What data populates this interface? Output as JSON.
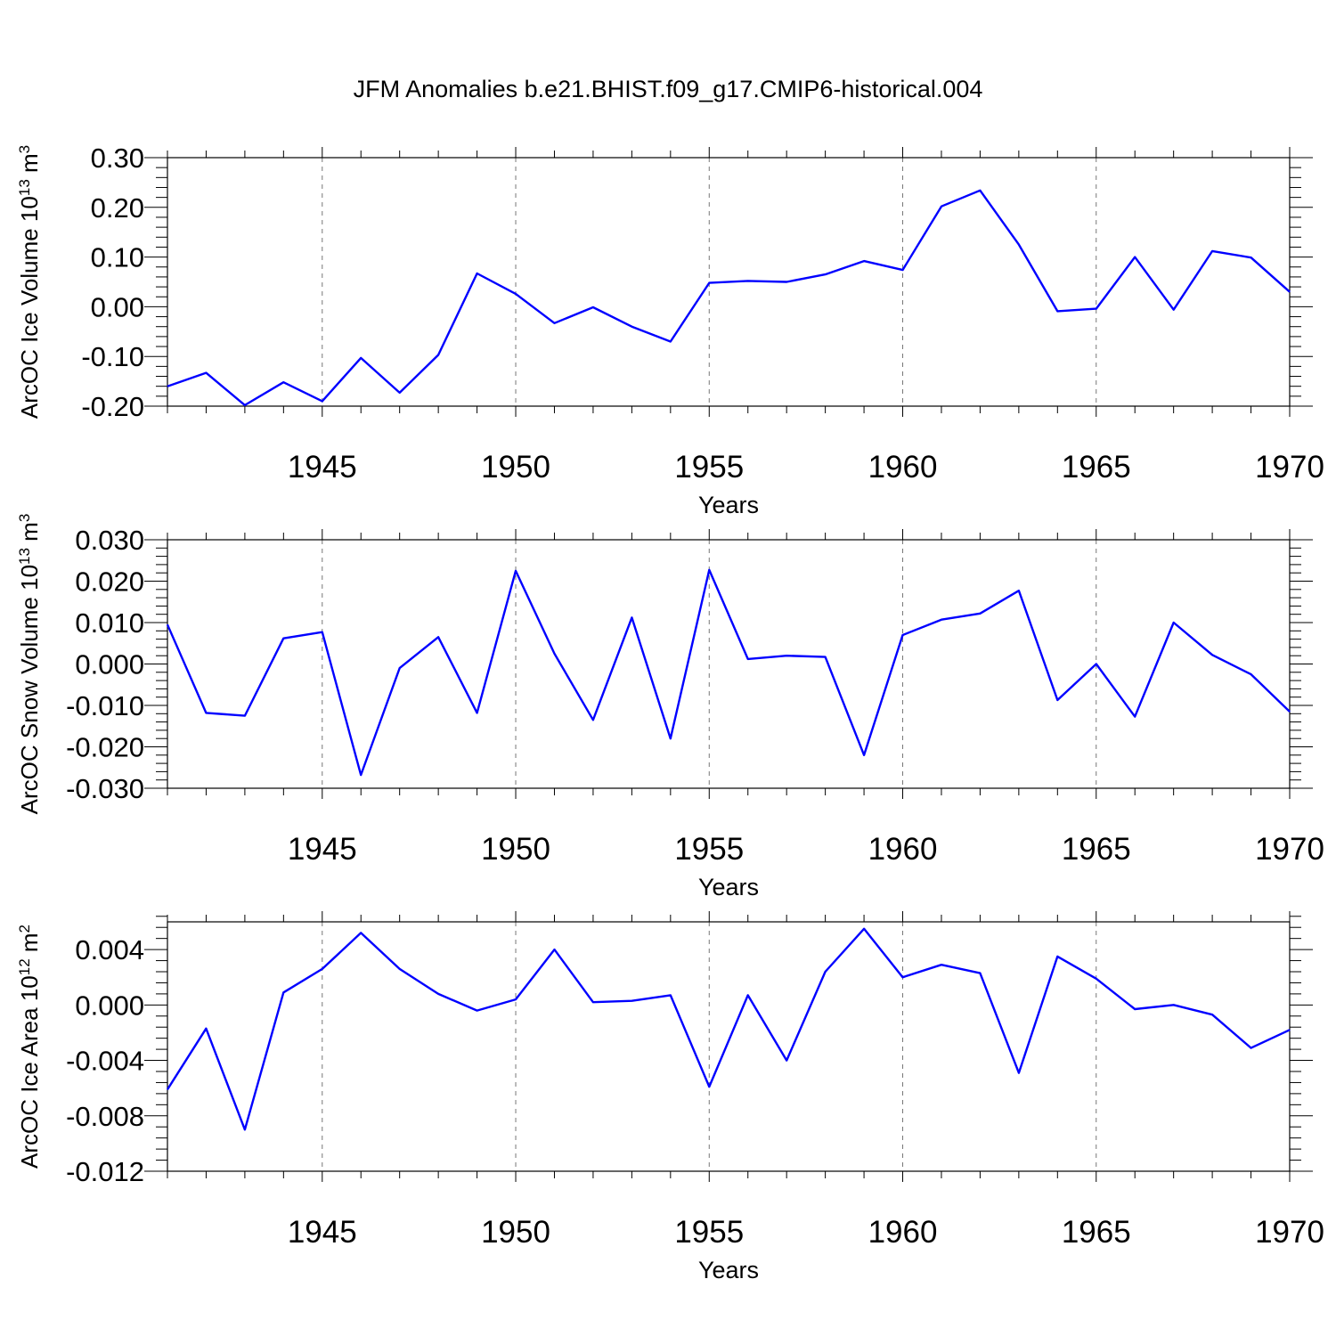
{
  "title": "JFM Anomalies b.e21.BHIST.f09_g17.CMIP6-historical.004",
  "line_color": "#0000ff",
  "grid_color": "#777777",
  "chart_data": [
    {
      "type": "line",
      "title": "JFM Anomalies b.e21.BHIST.f09_g17.CMIP6-historical.004",
      "xlabel": "Years",
      "ylabel": {
        "text": "ArcOC Ice Volume 10",
        "exp": "13",
        "unit": " m",
        "unit_exp": "3"
      },
      "xlim": [
        1941,
        1970
      ],
      "ylim": [
        -0.2,
        0.3
      ],
      "xticks": [
        1945,
        1950,
        1955,
        1960,
        1965,
        1970
      ],
      "yticks": [
        -0.2,
        -0.1,
        0.0,
        0.1,
        0.2,
        0.3
      ],
      "ytick_labels": [
        "-0.20",
        "-0.10",
        "0.00",
        "0.10",
        "0.20",
        "0.30"
      ],
      "grid": "vertical dashed at x ticks",
      "x": [
        1941,
        1942,
        1943,
        1944,
        1945,
        1946,
        1947,
        1948,
        1949,
        1950,
        1951,
        1952,
        1953,
        1954,
        1955,
        1956,
        1957,
        1958,
        1959,
        1960,
        1961,
        1962,
        1963,
        1964,
        1965,
        1966,
        1967,
        1968,
        1969,
        1970
      ],
      "y": [
        -0.16,
        -0.133,
        -0.198,
        -0.152,
        -0.19,
        -0.103,
        -0.173,
        -0.097,
        0.067,
        0.026,
        -0.033,
        -0.001,
        -0.04,
        -0.07,
        0.048,
        0.052,
        0.05,
        0.065,
        0.092,
        0.074,
        0.202,
        0.234,
        0.125,
        -0.009,
        -0.004,
        0.1,
        -0.006,
        0.112,
        0.099,
        0.03
      ]
    },
    {
      "type": "line",
      "xlabel": "Years",
      "ylabel": {
        "text": "ArcOC Snow Volume 10",
        "exp": "13",
        "unit": " m",
        "unit_exp": "3"
      },
      "xlim": [
        1941,
        1970
      ],
      "ylim": [
        -0.03,
        0.03
      ],
      "xticks": [
        1945,
        1950,
        1955,
        1960,
        1965,
        1970
      ],
      "yticks": [
        -0.03,
        -0.02,
        -0.01,
        0.0,
        0.01,
        0.02,
        0.03
      ],
      "ytick_labels": [
        "-0.030",
        "-0.020",
        "-0.010",
        "0.000",
        "0.010",
        "0.020",
        "0.030"
      ],
      "grid": "vertical dashed at x ticks",
      "x": [
        1941,
        1942,
        1943,
        1944,
        1945,
        1946,
        1947,
        1948,
        1949,
        1950,
        1951,
        1952,
        1953,
        1954,
        1955,
        1956,
        1957,
        1958,
        1959,
        1960,
        1961,
        1962,
        1963,
        1964,
        1965,
        1966,
        1967,
        1968,
        1969,
        1970
      ],
      "y": [
        0.0095,
        -0.0118,
        -0.0125,
        0.0062,
        0.0077,
        -0.0268,
        -0.001,
        0.0065,
        -0.0118,
        0.0225,
        0.0025,
        -0.0135,
        0.0112,
        -0.018,
        0.0227,
        0.0012,
        0.002,
        0.0017,
        -0.022,
        0.007,
        0.0107,
        0.0122,
        0.0177,
        -0.0087,
        0.0,
        -0.0127,
        0.01,
        0.0022,
        -0.0025,
        -0.0115
      ]
    },
    {
      "type": "line",
      "xlabel": "Years",
      "ylabel": {
        "text": "ArcOC Ice Area 10",
        "exp": "12",
        "unit": " m",
        "unit_exp": "2"
      },
      "xlim": [
        1941,
        1970
      ],
      "ylim": [
        -0.012,
        0.006
      ],
      "xticks": [
        1945,
        1950,
        1955,
        1960,
        1965,
        1970
      ],
      "yticks": [
        -0.012,
        -0.008,
        -0.004,
        0.0,
        0.004
      ],
      "ytick_labels": [
        "-0.012",
        "-0.008",
        "-0.004",
        "0.000",
        "0.004"
      ],
      "grid": "vertical dashed at x ticks",
      "x": [
        1941,
        1942,
        1943,
        1944,
        1945,
        1946,
        1947,
        1948,
        1949,
        1950,
        1951,
        1952,
        1953,
        1954,
        1955,
        1956,
        1957,
        1958,
        1959,
        1960,
        1961,
        1962,
        1963,
        1964,
        1965,
        1966,
        1967,
        1968,
        1969,
        1970
      ],
      "y": [
        -0.0061,
        -0.0017,
        -0.009,
        0.0009,
        0.0026,
        0.0052,
        0.0026,
        0.0008,
        -0.0004,
        0.0004,
        0.004,
        0.0002,
        0.0003,
        0.0007,
        -0.0059,
        0.0007,
        -0.004,
        0.0024,
        0.0055,
        0.002,
        0.0029,
        0.0023,
        -0.0049,
        0.0035,
        0.0019,
        -0.0003,
        0.0,
        -0.0007,
        -0.0031,
        -0.0018
      ]
    }
  ]
}
